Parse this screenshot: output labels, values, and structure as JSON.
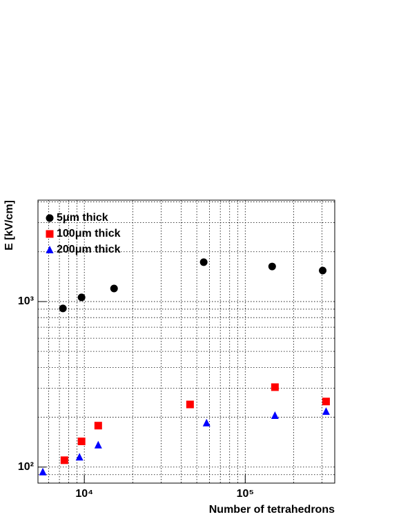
{
  "chart_data": {
    "type": "scatter",
    "x_label": "Number of tetrahedrons",
    "y_label": "E [kV/cm]",
    "log_x": true,
    "log_y": true,
    "grid": true,
    "xlim": [
      5150,
      360000
    ],
    "ylim": [
      80,
      4100
    ],
    "xticks": [
      {
        "value": 10000,
        "label": "10⁴"
      },
      {
        "value": 100000,
        "label": "10⁵"
      }
    ],
    "yticks": [
      {
        "value": 100,
        "label": "10²"
      },
      {
        "value": 1000,
        "label": "10³"
      }
    ],
    "x_minor_grid": [
      6000,
      7000,
      8000,
      9000,
      20000,
      30000,
      40000,
      50000,
      60000,
      70000,
      80000,
      90000,
      200000,
      300000
    ],
    "y_minor_grid": [
      90,
      200,
      300,
      400,
      500,
      600,
      700,
      800,
      900,
      2000,
      3000,
      4000
    ],
    "legend_position": "upper-left",
    "series": [
      {
        "name": "5μm thick",
        "color": "#000000",
        "marker": "circle",
        "x": [
          7360,
          9610,
          15300,
          55200,
          147000,
          303000
        ],
        "values": [
          909,
          1060,
          1200,
          1730,
          1630,
          1540
        ]
      },
      {
        "name": "100μm thick",
        "color": "#ff0000",
        "marker": "square",
        "x": [
          7520,
          9610,
          12200,
          45400,
          153000,
          318000
        ],
        "values": [
          110,
          143,
          178,
          239,
          304,
          249
        ]
      },
      {
        "name": "200μm thick",
        "color": "#0000ff",
        "marker": "triangle",
        "x": [
          5520,
          9330,
          12200,
          57500,
          153000,
          318000
        ],
        "values": [
          93.5,
          115,
          136,
          185,
          205,
          217
        ]
      }
    ]
  }
}
